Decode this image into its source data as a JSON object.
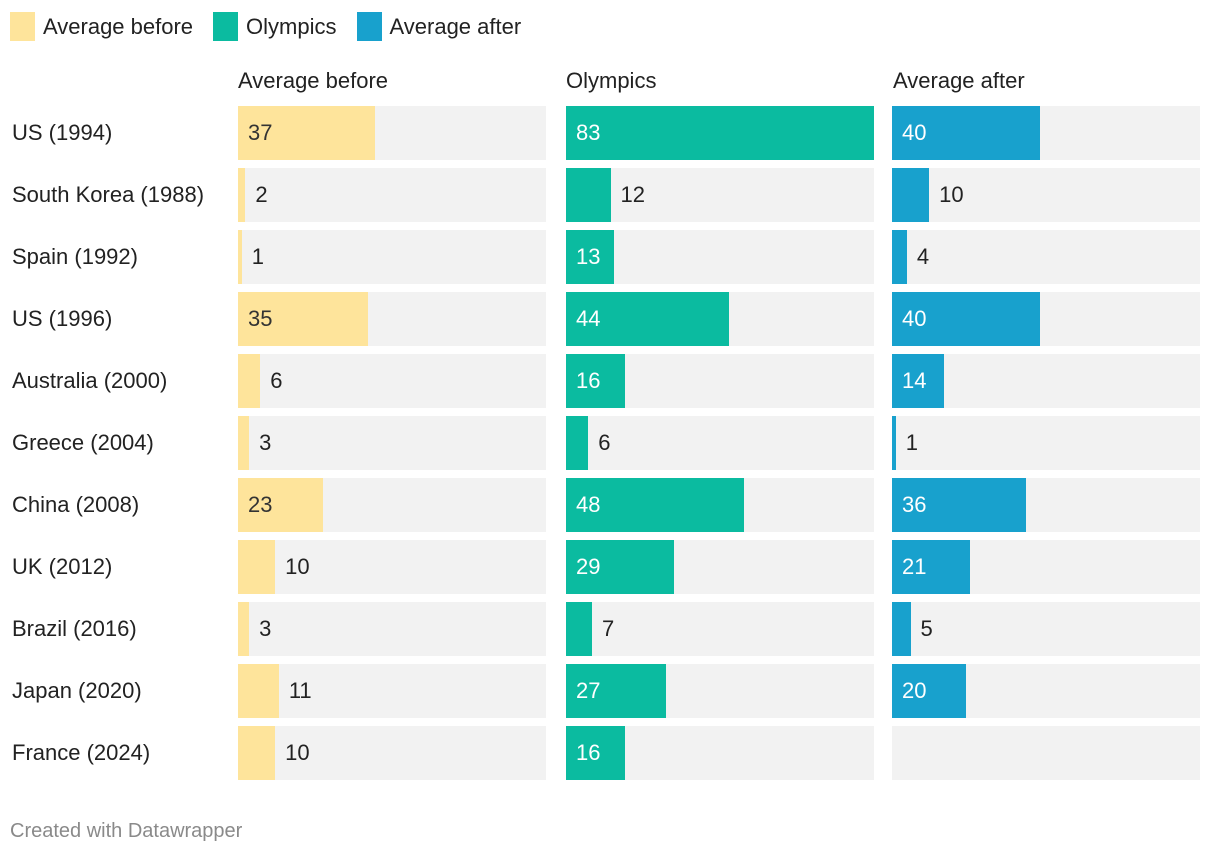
{
  "footer": "Created with Datawrapper",
  "chart_data": {
    "type": "bar",
    "layout": "small-multiples-horizontal",
    "xlim": [
      0,
      83
    ],
    "categories": [
      "US (1994)",
      "South Korea (1988)",
      "Spain (1992)",
      "US (1996)",
      "Australia (2000)",
      "Greece (2004)",
      "China (2008)",
      "UK (2012)",
      "Brazil (2016)",
      "Japan (2020)",
      "France (2024)"
    ],
    "legend": {
      "placement": "top-left"
    },
    "series": [
      {
        "name": "Average before",
        "color": "#fee49b",
        "label_color_inside": "#333333",
        "values": [
          37,
          2,
          1,
          35,
          6,
          3,
          23,
          10,
          3,
          11,
          10
        ]
      },
      {
        "name": "Olympics",
        "color": "#0bbba0",
        "label_color_inside": "#ffffff",
        "values": [
          83,
          12,
          13,
          44,
          16,
          6,
          48,
          29,
          7,
          27,
          16
        ]
      },
      {
        "name": "Average after",
        "color": "#18a1cd",
        "label_color_inside": "#ffffff",
        "values": [
          40,
          10,
          4,
          40,
          14,
          1,
          36,
          21,
          5,
          20,
          null
        ]
      }
    ]
  }
}
